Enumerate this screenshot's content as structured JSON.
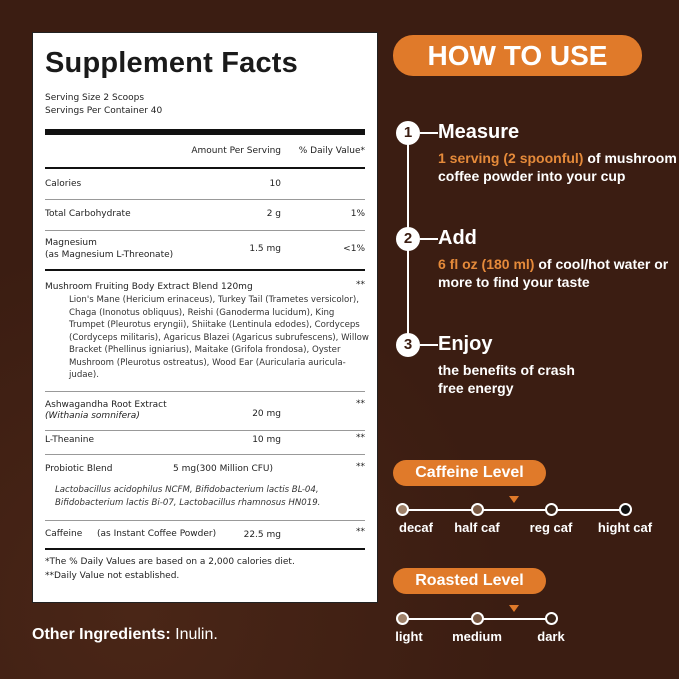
{
  "facts": {
    "title": "Supplement Facts",
    "serving_size": "Serving Size 2 Scoops",
    "servings_per_container": "Servings Per Container 40",
    "col_amount": "Amount Per Serving",
    "col_dv": "% Daily Value*",
    "rows": [
      {
        "name": "Calories",
        "amount": "10",
        "dv": ""
      },
      {
        "name": "Total Carbohydrate",
        "amount": "2 g",
        "dv": "1%"
      },
      {
        "name": "Magnesium",
        "sub": "(as Magnesium L-Threonate)",
        "amount": "1.5 mg",
        "dv": "<1%"
      },
      {
        "name": "Mushroom Fruiting Body Extract Blend",
        "amount": "120mg",
        "dv": "**",
        "detail": "Lion's Mane (Hericium erinaceus), Turkey Tail (Trametes versicolor), Chaga (Inonotus obliquus), Reishi (Ganoderma lucidum), King Trumpet (Pleurotus eryngii), Shiitake (Lentinula edodes), Cordyceps (Cordyceps militaris), Agaricus Blazei (Agaricus subrufescens), Willow Bracket (Phellinus igniarius), Maitake (Grifola frondosa), Oyster Mushroom (Pleurotus ostreatus), Wood Ear (Auricularia auricula-judae)."
      },
      {
        "name": "Ashwagandha Root Extract",
        "sub": "(Withania somnifera)",
        "amount": "20 mg",
        "dv": "**"
      },
      {
        "name": "L-Theanine",
        "amount": "10 mg",
        "dv": "**"
      },
      {
        "name": "Probiotic Blend",
        "amount": "5 mg(300 Million CFU)",
        "dv": "**",
        "detail": "Lactobacillus acidophilus NCFM, Bifidobacterium lactis BL-04, Bifidobacterium lactis Bi-07, Lactobacillus rhamnosus HN019."
      },
      {
        "name": "Caffeine",
        "sub": "(as Instant Coffee Powder)",
        "amount": "22.5 mg",
        "dv": "**"
      }
    ],
    "footnote1": "*The % Daily Values are based on a 2,000 calories diet.",
    "footnote2": "**Daily Value not established."
  },
  "other_ingredients": {
    "label": "Other Ingredients:",
    "value": " Inulin."
  },
  "how_to_use": {
    "title": "HOW TO USE",
    "steps": [
      {
        "num": "1",
        "title": "Measure",
        "highlight": "1 serving (2 spoonful)",
        "text": " of mushroom coffee powder into your cup"
      },
      {
        "num": "2",
        "title": "Add",
        "highlight": "6 fl oz (180 ml)",
        "text": "  of cool/hot water or more to find your taste"
      },
      {
        "num": "3",
        "title": "Enjoy",
        "highlight": "",
        "text": "the benefits of crash free energy"
      }
    ]
  },
  "caffeine_level": {
    "title": "Caffeine Level",
    "levels": [
      "decaf",
      "half caf",
      "reg caf",
      "hight caf"
    ],
    "indicator": "between half caf and reg caf"
  },
  "roasted_level": {
    "title": "Roasted Level",
    "levels": [
      "light",
      "medium",
      "dark"
    ],
    "indicator": "between medium and dark"
  },
  "colors": {
    "background": "#3b1d12",
    "accent": "#e07a2a",
    "panel": "#ffffff"
  }
}
